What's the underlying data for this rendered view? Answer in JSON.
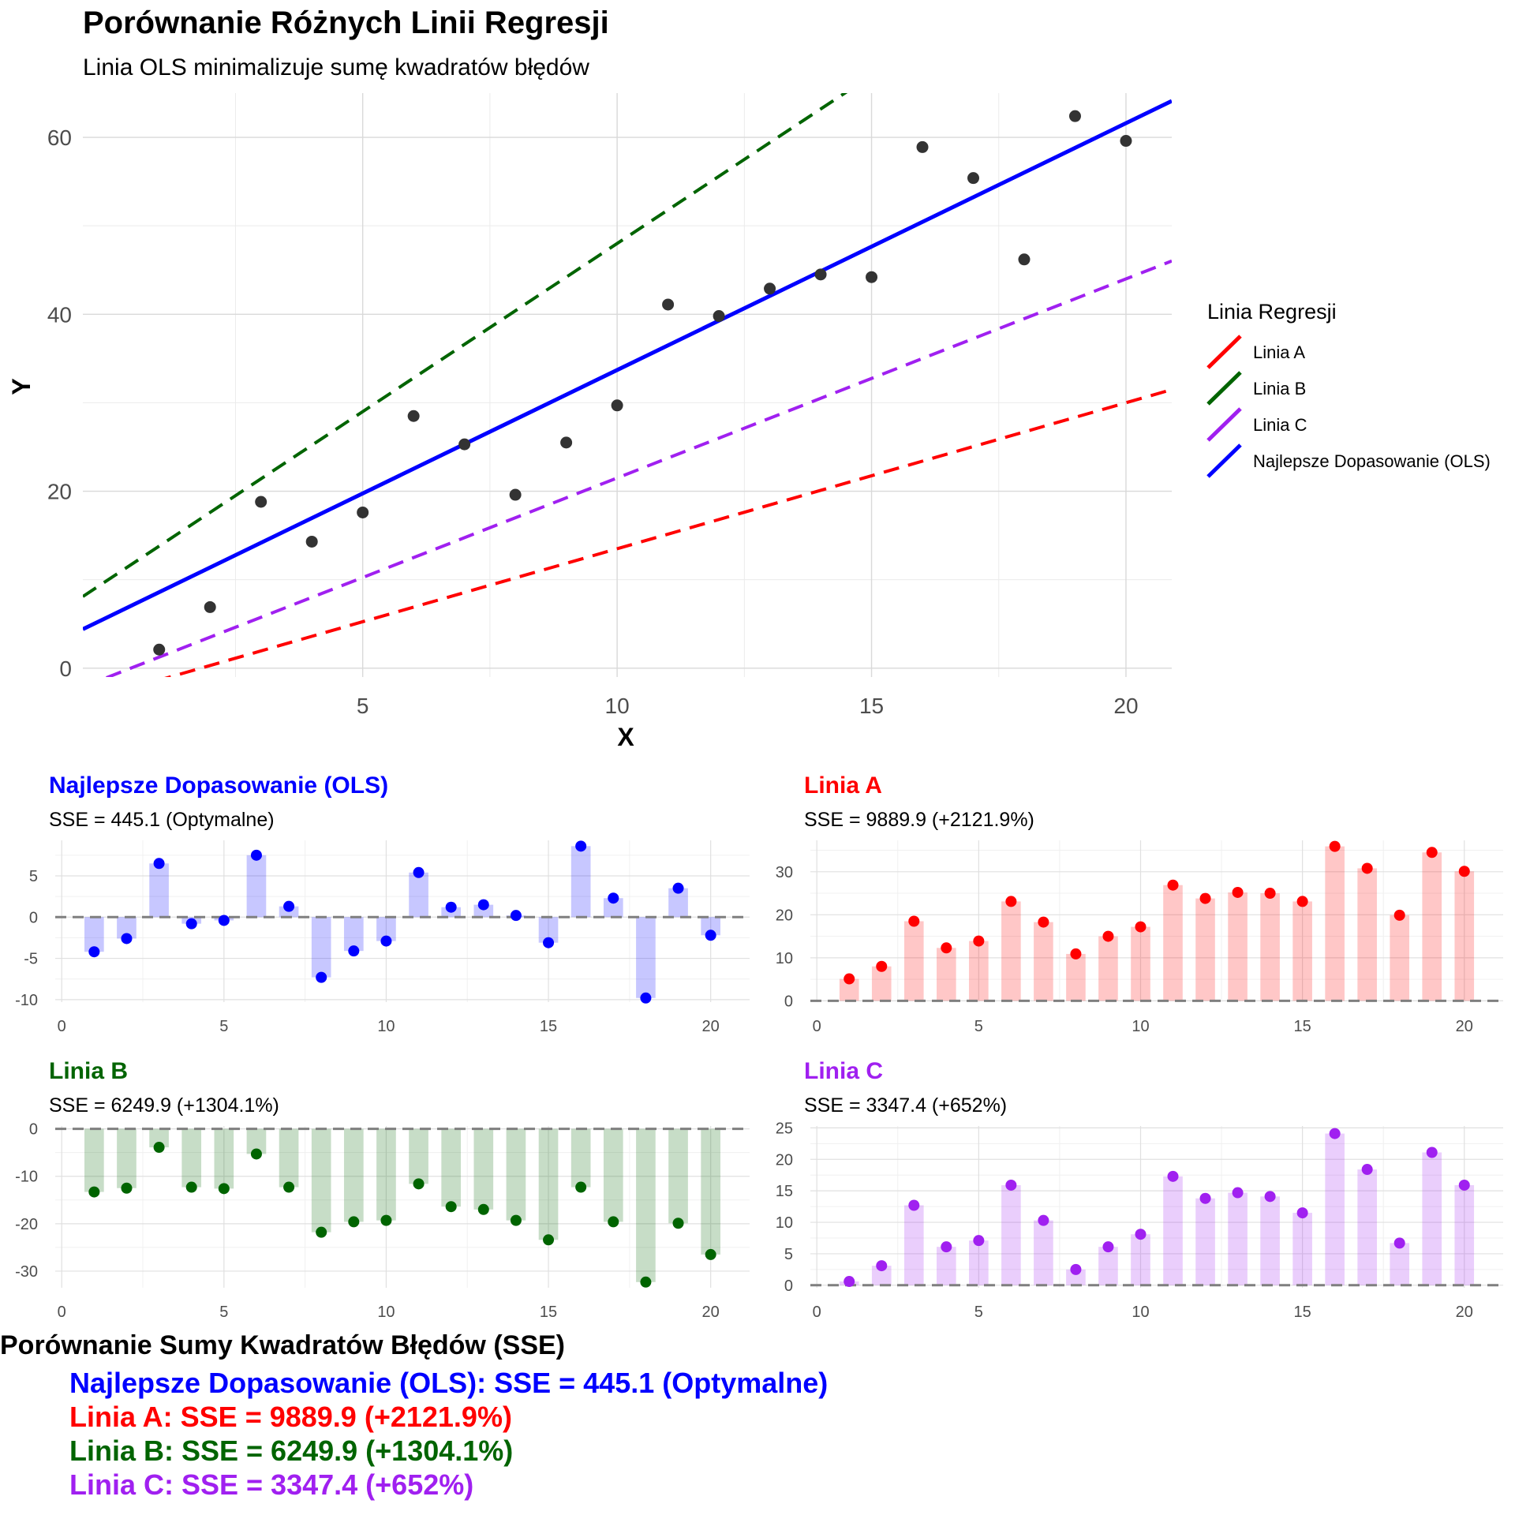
{
  "main_chart": {
    "title": "Porównanie Różnych Linii Regresji",
    "subtitle": "Linia OLS minimalizuje sumę kwadratów błędów",
    "xlabel": "X",
    "ylabel": "Y",
    "legend_title": "Linia Regresji"
  },
  "summary": {
    "title": "Porównanie Sumy Kwadratów Błędów (SSE)",
    "lines": [
      {
        "text": "Najlepsze Dopasowanie (OLS): SSE = 445.1 (Optymalne)",
        "color": "#0000ff"
      },
      {
        "text": "Linia A: SSE = 9889.9 (+2121.9%)",
        "color": "#ff0000"
      },
      {
        "text": "Linia B: SSE = 6249.9 (+1304.1%)",
        "color": "#006400"
      },
      {
        "text": "Linia C: SSE = 3347.4 (+652%)",
        "color": "#a020f0"
      }
    ]
  },
  "chart_data": [
    {
      "type": "scatter",
      "title": "Porównanie Różnych Linii Regresji",
      "subtitle": "Linia OLS minimalizuje sumę kwadratów błędów",
      "xlabel": "X",
      "ylabel": "Y",
      "xlim": [
        -0.5,
        20.9
      ],
      "ylim": [
        -1,
        65
      ],
      "x_ticks": [
        5,
        10,
        15,
        20
      ],
      "y_ticks": [
        0,
        20,
        40,
        60
      ],
      "grid": true,
      "legend_placement": "right",
      "legend_title": "Linia Regresji",
      "points": {
        "x": [
          1,
          2,
          3,
          4,
          5,
          6,
          7,
          8,
          9,
          10,
          11,
          12,
          13,
          14,
          15,
          16,
          17,
          18,
          19,
          20
        ],
        "y": [
          2.1,
          6.9,
          18.8,
          14.3,
          17.6,
          28.5,
          25.3,
          19.6,
          25.5,
          29.7,
          41.1,
          39.8,
          42.9,
          44.5,
          44.2,
          58.9,
          55.4,
          46.2,
          62.4,
          59.6
        ],
        "color": "#333333"
      },
      "series": [
        {
          "name": "Linia A",
          "intercept": -3,
          "slope": 1.65,
          "color": "#ff0000",
          "dashed": true
        },
        {
          "name": "Linia B",
          "intercept": 10,
          "slope": 3.8,
          "color": "#006400",
          "dashed": true
        },
        {
          "name": "Linia C",
          "intercept": -1,
          "slope": 2.25,
          "color": "#a020f0",
          "dashed": true
        },
        {
          "name": "Najlepsze Dopasowanie (OLS)",
          "intercept": 5.8,
          "slope": 2.79,
          "color": "#0000ff",
          "dashed": false
        }
      ]
    },
    {
      "type": "bar",
      "title": "Najlepsze Dopasowanie (OLS)",
      "subtitle": "SSE = 445.1  (Optymalne)",
      "color": "#0000ff",
      "x": [
        1,
        2,
        3,
        4,
        5,
        6,
        7,
        8,
        9,
        10,
        11,
        12,
        13,
        14,
        15,
        16,
        17,
        18,
        19,
        20
      ],
      "values": [
        -4.2,
        -2.6,
        6.5,
        -0.8,
        -0.4,
        7.5,
        1.3,
        -7.3,
        -4.1,
        -2.9,
        5.4,
        1.2,
        1.5,
        0.2,
        -3.1,
        8.6,
        2.3,
        -9.8,
        3.5,
        -2.2
      ],
      "xlim": [
        -0.2,
        21.2
      ],
      "ylim": [
        -10.3,
        9.3
      ],
      "x_ticks": [
        0,
        5,
        10,
        15,
        20
      ],
      "y_ticks": [
        -10,
        -5,
        0,
        5
      ]
    },
    {
      "type": "bar",
      "title": "Linia A",
      "subtitle": "SSE = 9889.9  (+2121.9%)",
      "color": "#ff0000",
      "x": [
        1,
        2,
        3,
        4,
        5,
        6,
        7,
        8,
        9,
        10,
        11,
        12,
        13,
        14,
        15,
        16,
        17,
        18,
        19,
        20
      ],
      "values": [
        5.1,
        8.0,
        18.5,
        12.3,
        13.9,
        23.1,
        18.3,
        10.9,
        15.0,
        17.2,
        26.9,
        23.8,
        25.2,
        25.0,
        23.1,
        35.9,
        30.8,
        19.9,
        34.5,
        30.1
      ],
      "xlim": [
        -0.2,
        21.2
      ],
      "ylim": [
        -0.3,
        37.3
      ],
      "x_ticks": [
        0,
        5,
        10,
        15,
        20
      ],
      "y_ticks": [
        0,
        10,
        20,
        30
      ]
    },
    {
      "type": "bar",
      "title": "Linia B",
      "subtitle": "SSE = 6249.9  (+1304.1%)",
      "color": "#006400",
      "x": [
        1,
        2,
        3,
        4,
        5,
        6,
        7,
        8,
        9,
        10,
        11,
        12,
        13,
        14,
        15,
        16,
        17,
        18,
        19,
        20
      ],
      "values": [
        -13.3,
        -12.5,
        -3.9,
        -12.3,
        -12.6,
        -5.3,
        -12.3,
        -21.8,
        -19.6,
        -19.3,
        -11.6,
        -16.4,
        -17.0,
        -19.3,
        -23.4,
        -12.3,
        -19.6,
        -32.3,
        -19.9,
        -26.5
      ],
      "xlim": [
        -0.2,
        21.2
      ],
      "ylim": [
        -33.5,
        0.6
      ],
      "x_ticks": [
        0,
        5,
        10,
        15,
        20
      ],
      "y_ticks": [
        -30,
        -20,
        -10,
        0
      ]
    },
    {
      "type": "bar",
      "title": "Linia C",
      "subtitle": "SSE = 3347.4  (+652%)",
      "color": "#a020f0",
      "x": [
        1,
        2,
        3,
        4,
        5,
        6,
        7,
        8,
        9,
        10,
        11,
        12,
        13,
        14,
        15,
        16,
        17,
        18,
        19,
        20
      ],
      "values": [
        0.6,
        3.1,
        12.7,
        6.1,
        7.1,
        15.9,
        10.3,
        2.5,
        6.1,
        8.1,
        17.3,
        13.8,
        14.7,
        14.1,
        11.5,
        24.1,
        18.4,
        6.7,
        21.1,
        15.9
      ],
      "xlim": [
        -0.2,
        21.2
      ],
      "ylim": [
        -0.4,
        25.3
      ],
      "x_ticks": [
        0,
        5,
        10,
        15,
        20
      ],
      "y_ticks": [
        0,
        5,
        10,
        15,
        20,
        25
      ]
    }
  ]
}
